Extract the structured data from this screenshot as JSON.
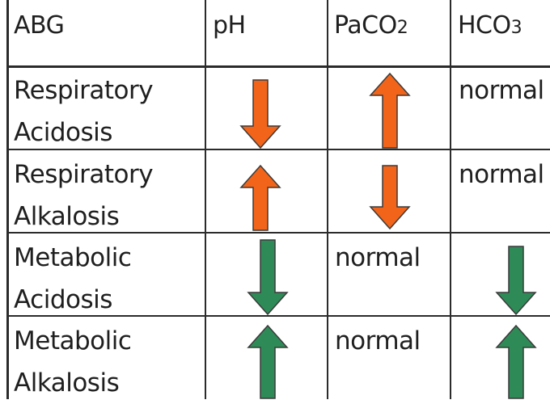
{
  "table": {
    "headers": {
      "abg": "ABG",
      "ph": "pH",
      "paco2_main": "PaCO",
      "paco2_sub": "2",
      "hco3_main": "HCO",
      "hco3_sub": "3"
    },
    "rows": [
      {
        "line1": "Respiratory",
        "line2": "Acidosis",
        "ph": "down",
        "paco2": "up",
        "hco3": "normal",
        "color": "#f26419"
      },
      {
        "line1": "Respiratory",
        "line2": "Alkalosis",
        "ph": "up",
        "paco2": "down",
        "hco3": "normal",
        "color": "#f26419"
      },
      {
        "line1": "Metabolic",
        "line2": "Acidosis",
        "ph": "down",
        "paco2": "normal",
        "hco3": "down",
        "color": "#2e8b57"
      },
      {
        "line1": "Metabolic",
        "line2": "Alkalosis",
        "ph": "up",
        "paco2": "normal",
        "hco3": "up",
        "color": "#2e8b57"
      }
    ]
  },
  "colors": {
    "respiratory_arrow": "#f26419",
    "metabolic_arrow": "#2e8b57",
    "grid": "#2b2b2b"
  }
}
